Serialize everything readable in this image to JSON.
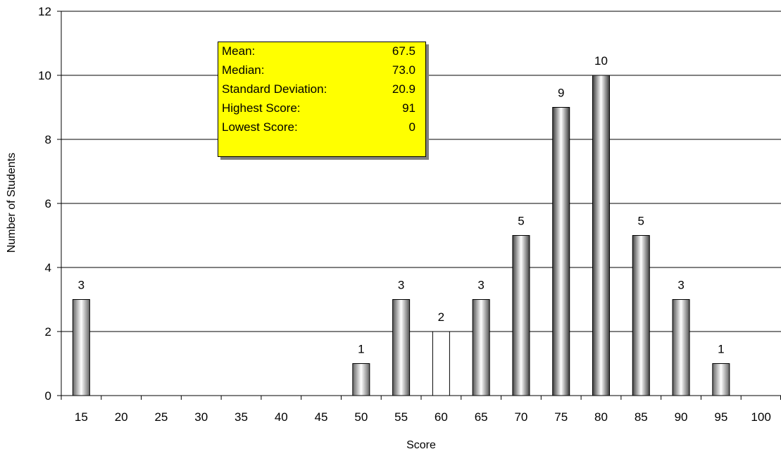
{
  "chart_data": {
    "type": "bar",
    "categories": [
      "15",
      "20",
      "25",
      "30",
      "35",
      "40",
      "45",
      "50",
      "55",
      "60",
      "65",
      "70",
      "75",
      "80",
      "85",
      "90",
      "95",
      "100"
    ],
    "values": [
      3,
      0,
      0,
      0,
      0,
      0,
      0,
      1,
      3,
      2,
      3,
      5,
      9,
      10,
      5,
      3,
      1,
      0
    ],
    "data_labels": [
      "3",
      "",
      "",
      "",
      "",
      "",
      "",
      "1",
      "3",
      "2",
      "3",
      "5",
      "9",
      "10",
      "5",
      "3",
      "1",
      ""
    ],
    "xlabel": "Score",
    "ylabel": "Number of Students",
    "ylim": [
      0,
      12
    ],
    "yticks": [
      "0",
      "2",
      "4",
      "6",
      "8",
      "10",
      "12"
    ],
    "grid": true,
    "legend": "none",
    "bar_colors": [
      "#666666",
      "#ffffff",
      "#ffffff",
      "#ffffff",
      "#ffffff",
      "#ffffff",
      "#ffffff",
      "#666666",
      "#555555",
      "#ffffff",
      "#555555",
      "#444444",
      "#3c3c3c",
      "#3c3c3c",
      "#444444",
      "#555555",
      "#666666",
      "#ffffff"
    ],
    "annotation": {
      "rows": [
        {
          "label": "Mean:",
          "value": "67.5"
        },
        {
          "label": "Median:",
          "value": "73.0"
        },
        {
          "label": "Standard Deviation:",
          "value": "20.9"
        },
        {
          "label": "Highest Score:",
          "value": "91"
        },
        {
          "label": "Lowest Score:",
          "value": "0"
        }
      ],
      "background": "#ffff00"
    }
  }
}
